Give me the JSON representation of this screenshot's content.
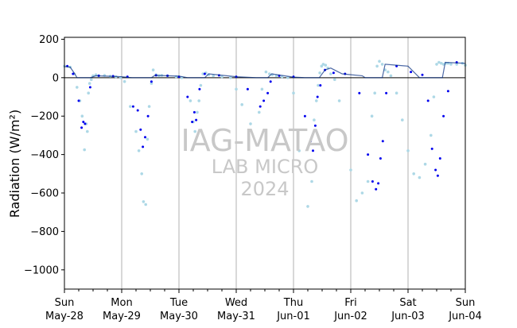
{
  "watermark": {
    "title": "IAG-MATAO",
    "line2": "LAB MICRO",
    "line3": "2024"
  },
  "chart_data": {
    "type": "scatter",
    "ylabel": "Radiation (W/m²)",
    "ylim": [
      -1100,
      210
    ],
    "xlim_days": [
      0,
      7
    ],
    "yticks": [
      200,
      0,
      -200,
      -400,
      -600,
      -800,
      -1000
    ],
    "ytick_labels": [
      "200",
      "0",
      "−200",
      "−400",
      "−600",
      "−800",
      "−1000"
    ],
    "xticks": [
      {
        "day": 0,
        "line1": "Sun",
        "line2": "May-28"
      },
      {
        "day": 1,
        "line1": "Mon",
        "line2": "May-29"
      },
      {
        "day": 2,
        "line1": "Tue",
        "line2": "May-30"
      },
      {
        "day": 3,
        "line1": "Wed",
        "line2": "May-31"
      },
      {
        "day": 4,
        "line1": "Thu",
        "line2": "Jun-01"
      },
      {
        "day": 5,
        "line1": "Fri",
        "line2": "Jun-02"
      },
      {
        "day": 6,
        "line1": "Sat",
        "line2": "Jun-03"
      },
      {
        "day": 7,
        "line1": "Sun",
        "line2": "Jun-04"
      }
    ],
    "grid": "vertical-at-day-ticks",
    "zero_line": true,
    "colors": {
      "series_light": "#add8e6",
      "series_dark": "#0000ee",
      "grid": "#b0b0b0",
      "zero_line": "#000000"
    },
    "series": [
      {
        "color": "#add8e6",
        "x": [
          0.0,
          0.1,
          0.17,
          0.22,
          0.27,
          0.31,
          0.35,
          0.38,
          0.4,
          0.42,
          0.44,
          0.47,
          0.5,
          0.55,
          0.6,
          0.7,
          0.8,
          0.9,
          0.98,
          1.05,
          1.15,
          1.25,
          1.3,
          1.35,
          1.38,
          1.42,
          1.45,
          1.48,
          1.52,
          1.55,
          1.6,
          1.65,
          1.7,
          1.8,
          1.95,
          2.05,
          2.2,
          2.25,
          2.28,
          2.32,
          2.35,
          2.38,
          2.42,
          2.47,
          2.52,
          2.6,
          2.75,
          2.9,
          3.0,
          3.1,
          3.25,
          3.4,
          3.45,
          3.52,
          3.58,
          3.63,
          3.7,
          3.8,
          3.9,
          4.0,
          4.1,
          4.25,
          4.32,
          4.36,
          4.4,
          4.43,
          4.46,
          4.49,
          4.52,
          4.56,
          4.6,
          4.65,
          4.72,
          4.8,
          4.9,
          5.0,
          5.1,
          5.2,
          5.3,
          5.37,
          5.42,
          5.46,
          5.5,
          5.55,
          5.6,
          5.65,
          5.7,
          5.8,
          5.9,
          6.0,
          6.1,
          6.2,
          6.3,
          6.4,
          6.45,
          6.5,
          6.54,
          6.58,
          6.62,
          6.66,
          6.7,
          6.75,
          6.85,
          6.95,
          7.0
        ],
        "y": [
          60,
          55,
          20,
          -50,
          -120,
          -200,
          -375,
          -240,
          -280,
          -80,
          -30,
          -10,
          10,
          15,
          10,
          12,
          8,
          5,
          0,
          -20,
          -150,
          -280,
          -380,
          -500,
          -645,
          -660,
          -320,
          -150,
          -30,
          40,
          15,
          10,
          12,
          10,
          5,
          0,
          -120,
          -230,
          -280,
          -180,
          -120,
          -40,
          20,
          25,
          15,
          10,
          5,
          0,
          -60,
          -140,
          -240,
          -180,
          -60,
          30,
          20,
          15,
          10,
          5,
          0,
          -80,
          -380,
          -670,
          -540,
          -220,
          -120,
          -40,
          25,
          60,
          70,
          65,
          50,
          20,
          -10,
          -120,
          -300,
          -480,
          -640,
          -600,
          -540,
          -200,
          -80,
          60,
          85,
          70,
          40,
          30,
          10,
          -80,
          -220,
          -380,
          -500,
          -520,
          -450,
          -300,
          -100,
          70,
          80,
          75,
          70,
          75,
          75,
          70,
          70,
          75,
          65
        ]
      },
      {
        "color": "#0000ee",
        "x": [
          0.05,
          0.15,
          0.25,
          0.3,
          0.33,
          0.36,
          0.45,
          0.6,
          0.85,
          1.1,
          1.2,
          1.28,
          1.33,
          1.37,
          1.41,
          1.46,
          1.52,
          1.6,
          1.8,
          2.0,
          2.15,
          2.23,
          2.27,
          2.3,
          2.36,
          2.45,
          2.7,
          3.0,
          3.2,
          3.42,
          3.48,
          3.55,
          3.6,
          3.75,
          4.0,
          4.2,
          4.3,
          4.34,
          4.38,
          4.42,
          4.47,
          4.55,
          4.7,
          4.9,
          5.15,
          5.3,
          5.38,
          5.44,
          5.48,
          5.52,
          5.56,
          5.62,
          5.8,
          6.05,
          6.25,
          6.35,
          6.42,
          6.48,
          6.52,
          6.56,
          6.62,
          6.7,
          6.85
        ],
        "y": [
          60,
          20,
          -120,
          -260,
          -230,
          -240,
          -50,
          10,
          8,
          5,
          -150,
          -170,
          -270,
          -360,
          -310,
          -200,
          -20,
          12,
          10,
          5,
          -100,
          -230,
          -180,
          -220,
          -60,
          20,
          12,
          5,
          -60,
          -150,
          -120,
          -80,
          -20,
          10,
          5,
          -200,
          -330,
          -380,
          -250,
          -100,
          -40,
          40,
          25,
          20,
          -80,
          -400,
          -540,
          -580,
          -550,
          -420,
          -330,
          -80,
          60,
          30,
          15,
          -120,
          -370,
          -480,
          -510,
          -420,
          -200,
          -70,
          80
        ]
      },
      {
        "color": "#002a80",
        "line": true,
        "x": [
          0.0,
          0.1,
          0.18,
          0.22,
          0.4,
          0.45,
          0.55,
          1.0,
          1.18,
          1.52,
          1.58,
          2.0,
          2.15,
          2.45,
          2.52,
          3.0,
          3.35,
          3.55,
          3.62,
          4.0,
          4.2,
          4.45,
          4.55,
          4.65,
          4.85,
          5.2,
          5.25,
          5.35,
          5.55,
          5.6,
          6.0,
          6.2,
          6.6,
          6.65,
          6.75,
          7.0
        ],
        "y": [
          58,
          55,
          20,
          0,
          0,
          0,
          10,
          5,
          0,
          0,
          12,
          8,
          0,
          0,
          20,
          5,
          0,
          0,
          20,
          3,
          0,
          0,
          40,
          50,
          20,
          10,
          0,
          0,
          0,
          70,
          60,
          0,
          0,
          80,
          78,
          75
        ]
      }
    ]
  }
}
